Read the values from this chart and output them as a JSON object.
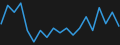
{
  "values": [
    10,
    18,
    15,
    19,
    7,
    2,
    7,
    4,
    8,
    6,
    8,
    5,
    8,
    13,
    7,
    17,
    10,
    15,
    9
  ],
  "line_color": "#3399dd",
  "linewidth": 1.1,
  "background_color": "#1a1a1a"
}
